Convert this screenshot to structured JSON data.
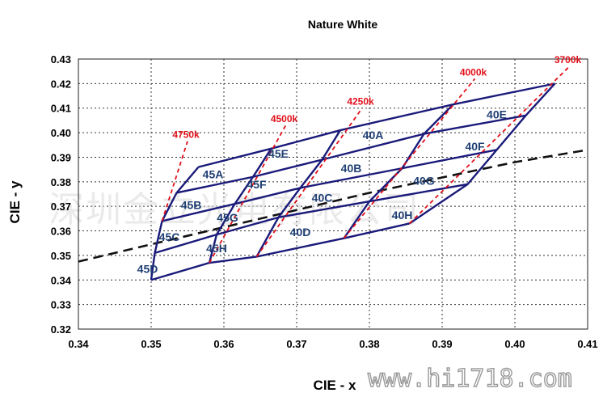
{
  "chart_data": {
    "type": "scatter",
    "title": "Nature White",
    "xlabel": "CIE - x",
    "ylabel": "CIE - y",
    "xlim": [
      0.34,
      0.41
    ],
    "ylim": [
      0.32,
      0.43
    ],
    "xticks": [
      "0.34",
      "0.35",
      "0.36",
      "0.37",
      "0.38",
      "0.39",
      "0.40",
      "0.41"
    ],
    "yticks": [
      "0.32",
      "0.33",
      "0.34",
      "0.35",
      "0.36",
      "0.37",
      "0.38",
      "0.39",
      "0.40",
      "0.41",
      "0.42",
      "0.43"
    ],
    "grid": true,
    "colors": {
      "bins": "#1a1a7a",
      "cct_lines": "#e0101a",
      "cct_text": "#e0101a",
      "bin_text": "#1f3f73",
      "blackbody": "#111111"
    },
    "bins": [
      {
        "name": "45A",
        "x": 0.3585,
        "y": 0.383
      },
      {
        "name": "45E",
        "x": 0.3675,
        "y": 0.3915
      },
      {
        "name": "40A",
        "x": 0.3805,
        "y": 0.399
      },
      {
        "name": "40E",
        "x": 0.3975,
        "y": 0.4075
      },
      {
        "name": "45B",
        "x": 0.3555,
        "y": 0.3705
      },
      {
        "name": "45F",
        "x": 0.3645,
        "y": 0.379
      },
      {
        "name": "40B",
        "x": 0.3775,
        "y": 0.3855
      },
      {
        "name": "40F",
        "x": 0.3945,
        "y": 0.3945
      },
      {
        "name": "45C",
        "x": 0.3525,
        "y": 0.3575
      },
      {
        "name": "45G",
        "x": 0.3605,
        "y": 0.3655
      },
      {
        "name": "40C",
        "x": 0.3735,
        "y": 0.3735
      },
      {
        "name": "40G",
        "x": 0.3875,
        "y": 0.3805
      },
      {
        "name": "45D",
        "x": 0.3495,
        "y": 0.3445
      },
      {
        "name": "45H",
        "x": 0.359,
        "y": 0.353
      },
      {
        "name": "40D",
        "x": 0.3705,
        "y": 0.3595
      },
      {
        "name": "40H",
        "x": 0.3845,
        "y": 0.3665
      }
    ],
    "grid_nodes": [
      [
        [
          0.3565,
          0.386
        ],
        [
          0.3665,
          0.3935
        ],
        [
          0.376,
          0.401
        ],
        [
          0.3915,
          0.4115
        ],
        [
          0.4055,
          0.42
        ]
      ],
      [
        [
          0.3535,
          0.3755
        ],
        [
          0.364,
          0.382
        ],
        [
          0.3735,
          0.389
        ],
        [
          0.3875,
          0.3995
        ],
        [
          0.4015,
          0.407
        ]
      ],
      [
        [
          0.3515,
          0.364
        ],
        [
          0.3615,
          0.371
        ],
        [
          0.3705,
          0.3775
        ],
        [
          0.3845,
          0.3855
        ],
        [
          0.3975,
          0.393
        ]
      ],
      [
        [
          0.3505,
          0.351
        ],
        [
          0.359,
          0.3585
        ],
        [
          0.3675,
          0.3655
        ],
        [
          0.38,
          0.372
        ],
        [
          0.3935,
          0.379
        ]
      ],
      [
        [
          0.35,
          0.34
        ],
        [
          0.358,
          0.347
        ],
        [
          0.3645,
          0.3495
        ],
        [
          0.3765,
          0.357
        ],
        [
          0.3855,
          0.363
        ]
      ]
    ],
    "cct_lines": [
      {
        "label": "4750k",
        "start": [
          0.3515,
          0.364
        ],
        "end": [
          0.355,
          0.3965
        ]
      },
      {
        "label": "4500k",
        "start": [
          0.358,
          0.347
        ],
        "end": [
          0.3685,
          0.403
        ]
      },
      {
        "label": "4250k",
        "start": [
          0.3645,
          0.3495
        ],
        "end": [
          0.379,
          0.41
        ]
      },
      {
        "label": "4000k",
        "start": [
          0.3765,
          0.357
        ],
        "end": [
          0.3945,
          0.422
        ]
      },
      {
        "label": "3700k",
        "start": [
          0.3855,
          0.363
        ],
        "end": [
          0.4075,
          0.427
        ]
      }
    ],
    "blackbody_locus": {
      "x": [
        0.34,
        0.36,
        0.38,
        0.4,
        0.41
      ],
      "y": [
        0.3475,
        0.3615,
        0.3755,
        0.388,
        0.393
      ]
    }
  },
  "watermark": {
    "company": "深圳金立光电有限公司",
    "url": "www.hi1718.com"
  }
}
